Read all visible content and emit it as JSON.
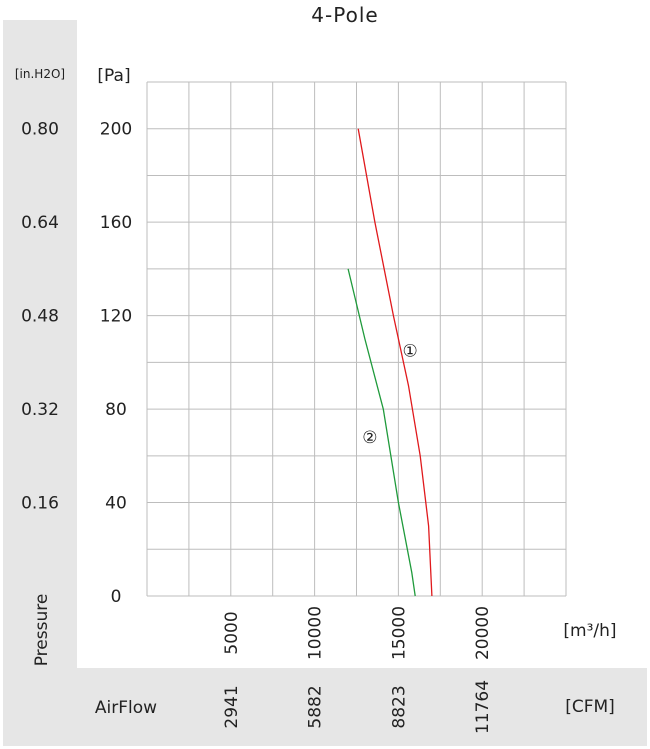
{
  "chart_data": {
    "type": "line",
    "title": "4-Pole",
    "ylabel": "Pressure",
    "xlabel": "AirFlow",
    "y_unit_primary": "[Pa]",
    "y_unit_secondary": "[in.H2O]",
    "x_unit_primary": "[m³/h]",
    "x_unit_secondary": "[CFM]",
    "xlim": [
      0,
      25000
    ],
    "ylim": [
      0,
      220
    ],
    "y_ticks": [
      0,
      40,
      80,
      120,
      160,
      200
    ],
    "y_ticks_secondary": [
      "0.16",
      "0.32",
      "0.48",
      "0.64",
      "0.80"
    ],
    "x_ticks": [
      5000,
      10000,
      15000,
      20000
    ],
    "x_ticks_secondary": [
      "2941",
      "5882",
      "8823",
      "11764"
    ],
    "grid": true,
    "series": [
      {
        "name": "①",
        "color": "#e0191c",
        "x": [
          12600,
          13600,
          14700,
          15600,
          16300,
          16800,
          17000
        ],
        "y": [
          200,
          160,
          120,
          90,
          60,
          30,
          0
        ]
      },
      {
        "name": "②",
        "color": "#1f9a3b",
        "x": [
          12000,
          13000,
          14100,
          15000,
          15800,
          16000
        ],
        "y": [
          140,
          110,
          80,
          40,
          10,
          0
        ]
      }
    ]
  }
}
